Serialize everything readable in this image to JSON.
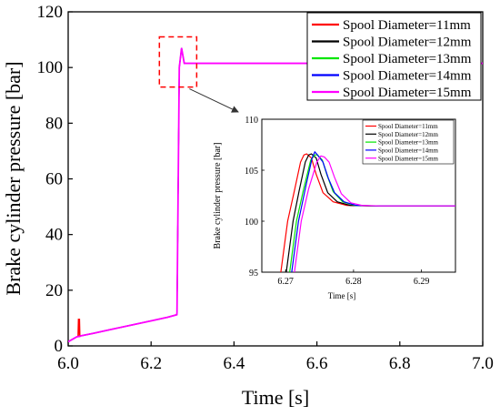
{
  "chart_data": [
    {
      "type": "line",
      "xlabel": "Time [s]",
      "ylabel": "Brake cylinder pressure [bar]",
      "xlim": [
        6.0,
        7.0
      ],
      "ylim": [
        0,
        120
      ],
      "x_ticks": [
        "6.0",
        "6.2",
        "6.4",
        "6.6",
        "6.8",
        "7.0"
      ],
      "y_ticks": [
        "0",
        "20",
        "40",
        "60",
        "80",
        "100",
        "120"
      ],
      "grid": false,
      "legend_position": "top-right",
      "series": [
        {
          "name": "Spool Diameter=11mm",
          "color": "#ff0000"
        },
        {
          "name": "Spool Diameter=12mm",
          "color": "#000000"
        },
        {
          "name": "Spool Diameter=13mm",
          "color": "#00e600"
        },
        {
          "name": "Spool Diameter=14mm",
          "color": "#0000ff"
        },
        {
          "name": "Spool Diameter=15mm",
          "color": "#ff00ff"
        }
      ],
      "main_curve": {
        "x": [
          6.0,
          6.02,
          6.022,
          6.026,
          6.03,
          6.06,
          6.1,
          6.15,
          6.2,
          6.24,
          6.262,
          6.2625,
          6.268,
          6.2735,
          6.28,
          6.3,
          6.5,
          6.8,
          7.0
        ],
        "y": [
          1.5,
          3.2,
          3.3,
          3.4,
          3.6,
          4.5,
          5.8,
          7.4,
          9.0,
          10.3,
          11.2,
          12.0,
          100.0,
          107.0,
          101.5,
          101.5,
          101.5,
          101.5,
          101.5
        ]
      },
      "spike": {
        "x": [
          6.024,
          6.025,
          6.027,
          6.028
        ],
        "y": [
          3.2,
          9.5,
          9.5,
          3.2
        ],
        "series": "Spool Diameter=11mm"
      },
      "zoom_box": {
        "x": [
          6.22,
          6.31
        ],
        "y": [
          93,
          111
        ]
      }
    },
    {
      "type": "line",
      "inset": true,
      "xlabel": "Time [s]",
      "ylabel": "Brake cylinder pressure [bar]",
      "xlim": [
        6.2665,
        6.295
      ],
      "ylim": [
        95,
        110
      ],
      "x_ticks": [
        "6.27",
        "6.28",
        "6.29"
      ],
      "y_ticks": [
        "95",
        "100",
        "105",
        "110"
      ],
      "legend_position": "top-right",
      "series": [
        {
          "name": "Spool Diameter=11mm",
          "color": "#ff0000",
          "x": [
            6.2693,
            6.2703,
            6.2713,
            6.2722,
            6.2727,
            6.2731,
            6.2738,
            6.2745,
            6.2755,
            6.277,
            6.279,
            6.282,
            6.295
          ],
          "y": [
            95,
            100,
            103,
            105.8,
            106.5,
            106.6,
            106.2,
            104.6,
            102.8,
            101.9,
            101.55,
            101.5,
            101.5
          ]
        },
        {
          "name": "Spool Diameter=12mm",
          "color": "#000000",
          "x": [
            6.2701,
            6.2711,
            6.272,
            6.2729,
            6.2734,
            6.2738,
            6.2745,
            6.2752,
            6.2762,
            6.2776,
            6.2795,
            6.2825,
            6.295
          ],
          "y": [
            95,
            100,
            103,
            105.8,
            106.5,
            106.6,
            106.2,
            104.6,
            102.8,
            101.9,
            101.55,
            101.5,
            101.5
          ]
        },
        {
          "name": "Spool Diameter=13mm",
          "color": "#00e600",
          "x": [
            6.2706,
            6.2716,
            6.2726,
            6.2737,
            6.2743,
            6.2747,
            6.2754,
            6.2761,
            6.277,
            6.2784,
            6.2802,
            6.283,
            6.295
          ],
          "y": [
            95,
            100,
            103,
            106,
            106.5,
            106.5,
            106.0,
            104.5,
            102.9,
            101.9,
            101.55,
            101.5,
            101.5
          ]
        },
        {
          "name": "Spool Diameter=14mm",
          "color": "#0000ff",
          "x": [
            6.2709,
            6.2719,
            6.273,
            6.2739,
            6.2743,
            6.2747,
            6.2755,
            6.2763,
            6.2772,
            6.2786,
            6.2804,
            6.2832,
            6.295
          ],
          "y": [
            95,
            100,
            103.5,
            106.2,
            106.8,
            106.5,
            105.8,
            104.2,
            102.8,
            101.9,
            101.55,
            101.5,
            101.5
          ]
        },
        {
          "name": "Spool Diameter=15mm",
          "color": "#ff00ff",
          "x": [
            6.2713,
            6.2723,
            6.2734,
            6.2746,
            6.2752,
            6.2757,
            6.2764,
            6.2772,
            6.2782,
            6.2796,
            6.2812,
            6.2838,
            6.295
          ],
          "y": [
            95,
            100,
            103.2,
            105.8,
            106.4,
            106.3,
            105.8,
            104.3,
            102.7,
            101.8,
            101.55,
            101.5,
            101.5
          ]
        }
      ]
    }
  ]
}
